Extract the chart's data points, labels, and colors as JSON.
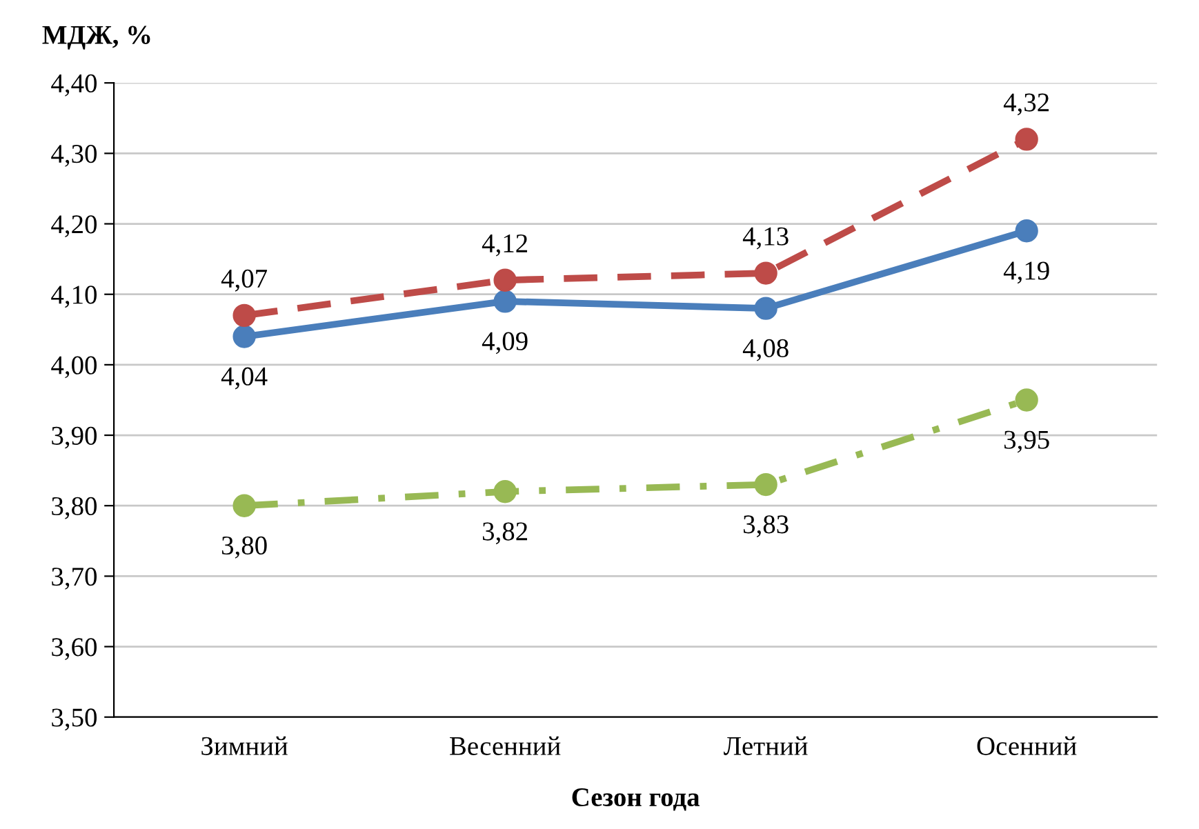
{
  "chart_data": {
    "type": "line",
    "ylabel": "МДЖ, %",
    "xlabel": "Сезон года",
    "categories": [
      "Зимний",
      "Весенний",
      "Летний",
      "Осенний"
    ],
    "series": [
      {
        "color": "#4a7ebb",
        "line_style": "solid",
        "values": [
          4.04,
          4.09,
          4.08,
          4.19
        ],
        "value_labels": [
          "4,04",
          "4,09",
          "4,08",
          "4,19"
        ]
      },
      {
        "color": "#be4b48",
        "line_style": "dashed",
        "values": [
          4.07,
          4.12,
          4.13,
          4.32
        ],
        "value_labels": [
          "4,07",
          "4,12",
          "4,13",
          "4,32"
        ]
      },
      {
        "color": "#98b954",
        "line_style": "dashdot",
        "values": [
          3.8,
          3.82,
          3.83,
          3.95
        ],
        "value_labels": [
          "3,80",
          "3,82",
          "3,83",
          "3,95"
        ]
      }
    ],
    "marker": "circle",
    "ylim": [
      3.5,
      4.4
    ],
    "yticks": [
      {
        "value": 3.5,
        "label": "3,50"
      },
      {
        "value": 3.6,
        "label": "3,60"
      },
      {
        "value": 3.7,
        "label": "3,70"
      },
      {
        "value": 3.8,
        "label": "3,80"
      },
      {
        "value": 3.9,
        "label": "3,90"
      },
      {
        "value": 4.0,
        "label": "4,00"
      },
      {
        "value": 4.1,
        "label": "4,10"
      },
      {
        "value": 4.2,
        "label": "4,20"
      },
      {
        "value": 4.3,
        "label": "4,30"
      },
      {
        "value": 4.4,
        "label": "4,40"
      }
    ],
    "grid": "y"
  }
}
